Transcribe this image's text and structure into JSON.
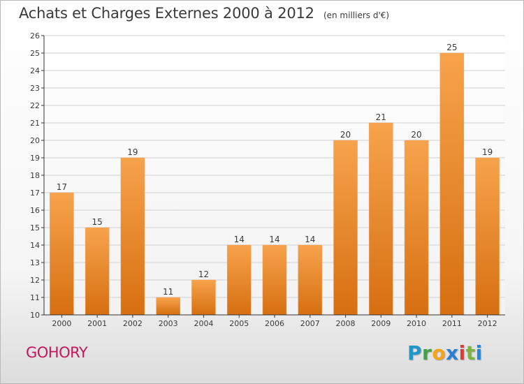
{
  "header": {
    "title": "Achats et Charges Externes 2000 à 2012",
    "subtitle": "(en milliers d'€)"
  },
  "footer": {
    "commune": "GOHORY",
    "logo_letters": [
      "P",
      "r",
      "o",
      "x",
      "i",
      "t",
      "i"
    ]
  },
  "colors": {
    "bar_top": "#f7a34c",
    "bar_bottom": "#d66f10",
    "grid": "#d0d0d0",
    "axis": "#333333",
    "text": "#3a3a3a",
    "commune": "#c2185b"
  },
  "chart_data": {
    "type": "bar",
    "title": "Achats et Charges Externes 2000 à 2012",
    "subtitle": "(en milliers d'€)",
    "categories": [
      "2000",
      "2001",
      "2002",
      "2003",
      "2004",
      "2005",
      "2006",
      "2007",
      "2008",
      "2009",
      "2010",
      "2011",
      "2012"
    ],
    "values": [
      17,
      15,
      19,
      11,
      12,
      14,
      14,
      14,
      20,
      21,
      20,
      25,
      19
    ],
    "ylim": [
      10,
      26
    ],
    "yticks": [
      10,
      11,
      12,
      13,
      14,
      15,
      16,
      17,
      18,
      19,
      20,
      21,
      22,
      23,
      24,
      25,
      26
    ],
    "grid": true,
    "data_labels": true
  }
}
